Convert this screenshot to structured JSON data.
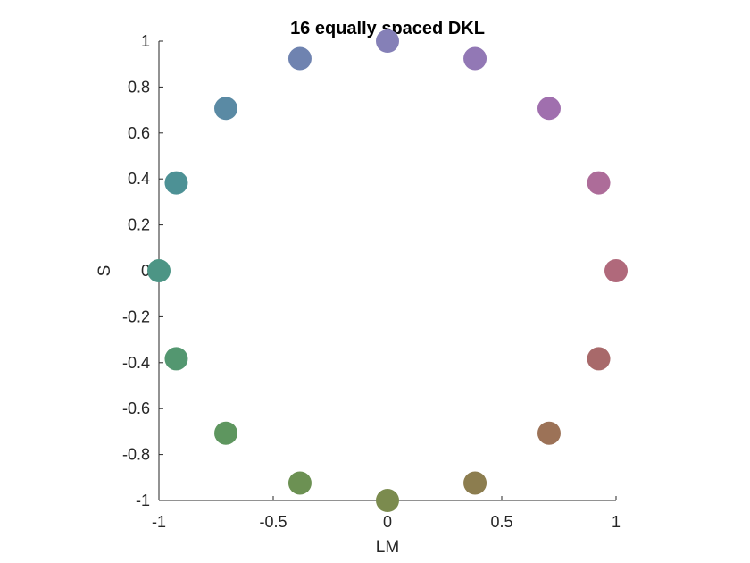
{
  "chart_data": {
    "type": "scatter",
    "title": "16 equally spaced DKL",
    "xlabel": "LM",
    "ylabel": "S",
    "xlim": [
      -1,
      1
    ],
    "ylim": [
      -1,
      1
    ],
    "xticks": [
      -1,
      -0.5,
      0,
      0.5,
      1
    ],
    "xtick_labels": [
      "-1",
      "-0.5",
      "0",
      "0.5",
      "1"
    ],
    "yticks": [
      1,
      0.8,
      0.6,
      0.4,
      0.2,
      0,
      -0.2,
      -0.4,
      -0.6,
      -0.8,
      -1
    ],
    "ytick_labels": [
      "1",
      "0.8",
      "0.6",
      "0.4",
      "0.2",
      "0",
      "-0.2",
      "-0.4",
      "-0.6",
      "-0.8",
      "-1"
    ],
    "grid": false,
    "points": [
      {
        "x": 1,
        "y": 0,
        "color": "#b0697b"
      },
      {
        "x": 0.924,
        "y": 0.383,
        "color": "#ad6c99"
      },
      {
        "x": 0.707,
        "y": 0.707,
        "color": "#a06fae"
      },
      {
        "x": 0.383,
        "y": 0.924,
        "color": "#9278b5"
      },
      {
        "x": 0,
        "y": 1,
        "color": "#8580b7"
      },
      {
        "x": -0.383,
        "y": 0.924,
        "color": "#6f83b0"
      },
      {
        "x": -0.707,
        "y": 0.707,
        "color": "#5a8aa4"
      },
      {
        "x": -0.924,
        "y": 0.383,
        "color": "#4d9195"
      },
      {
        "x": -1,
        "y": 0,
        "color": "#4c9585"
      },
      {
        "x": -0.924,
        "y": -0.383,
        "color": "#539770"
      },
      {
        "x": -0.707,
        "y": -0.707,
        "color": "#5e965f"
      },
      {
        "x": -0.383,
        "y": -0.924,
        "color": "#6c9153"
      },
      {
        "x": 0,
        "y": -1,
        "color": "#7b8b4e"
      },
      {
        "x": 0.383,
        "y": -0.924,
        "color": "#8c7d4f"
      },
      {
        "x": 0.707,
        "y": -0.707,
        "color": "#9c7257"
      },
      {
        "x": 0.924,
        "y": -0.383,
        "color": "#a8696a"
      }
    ]
  }
}
